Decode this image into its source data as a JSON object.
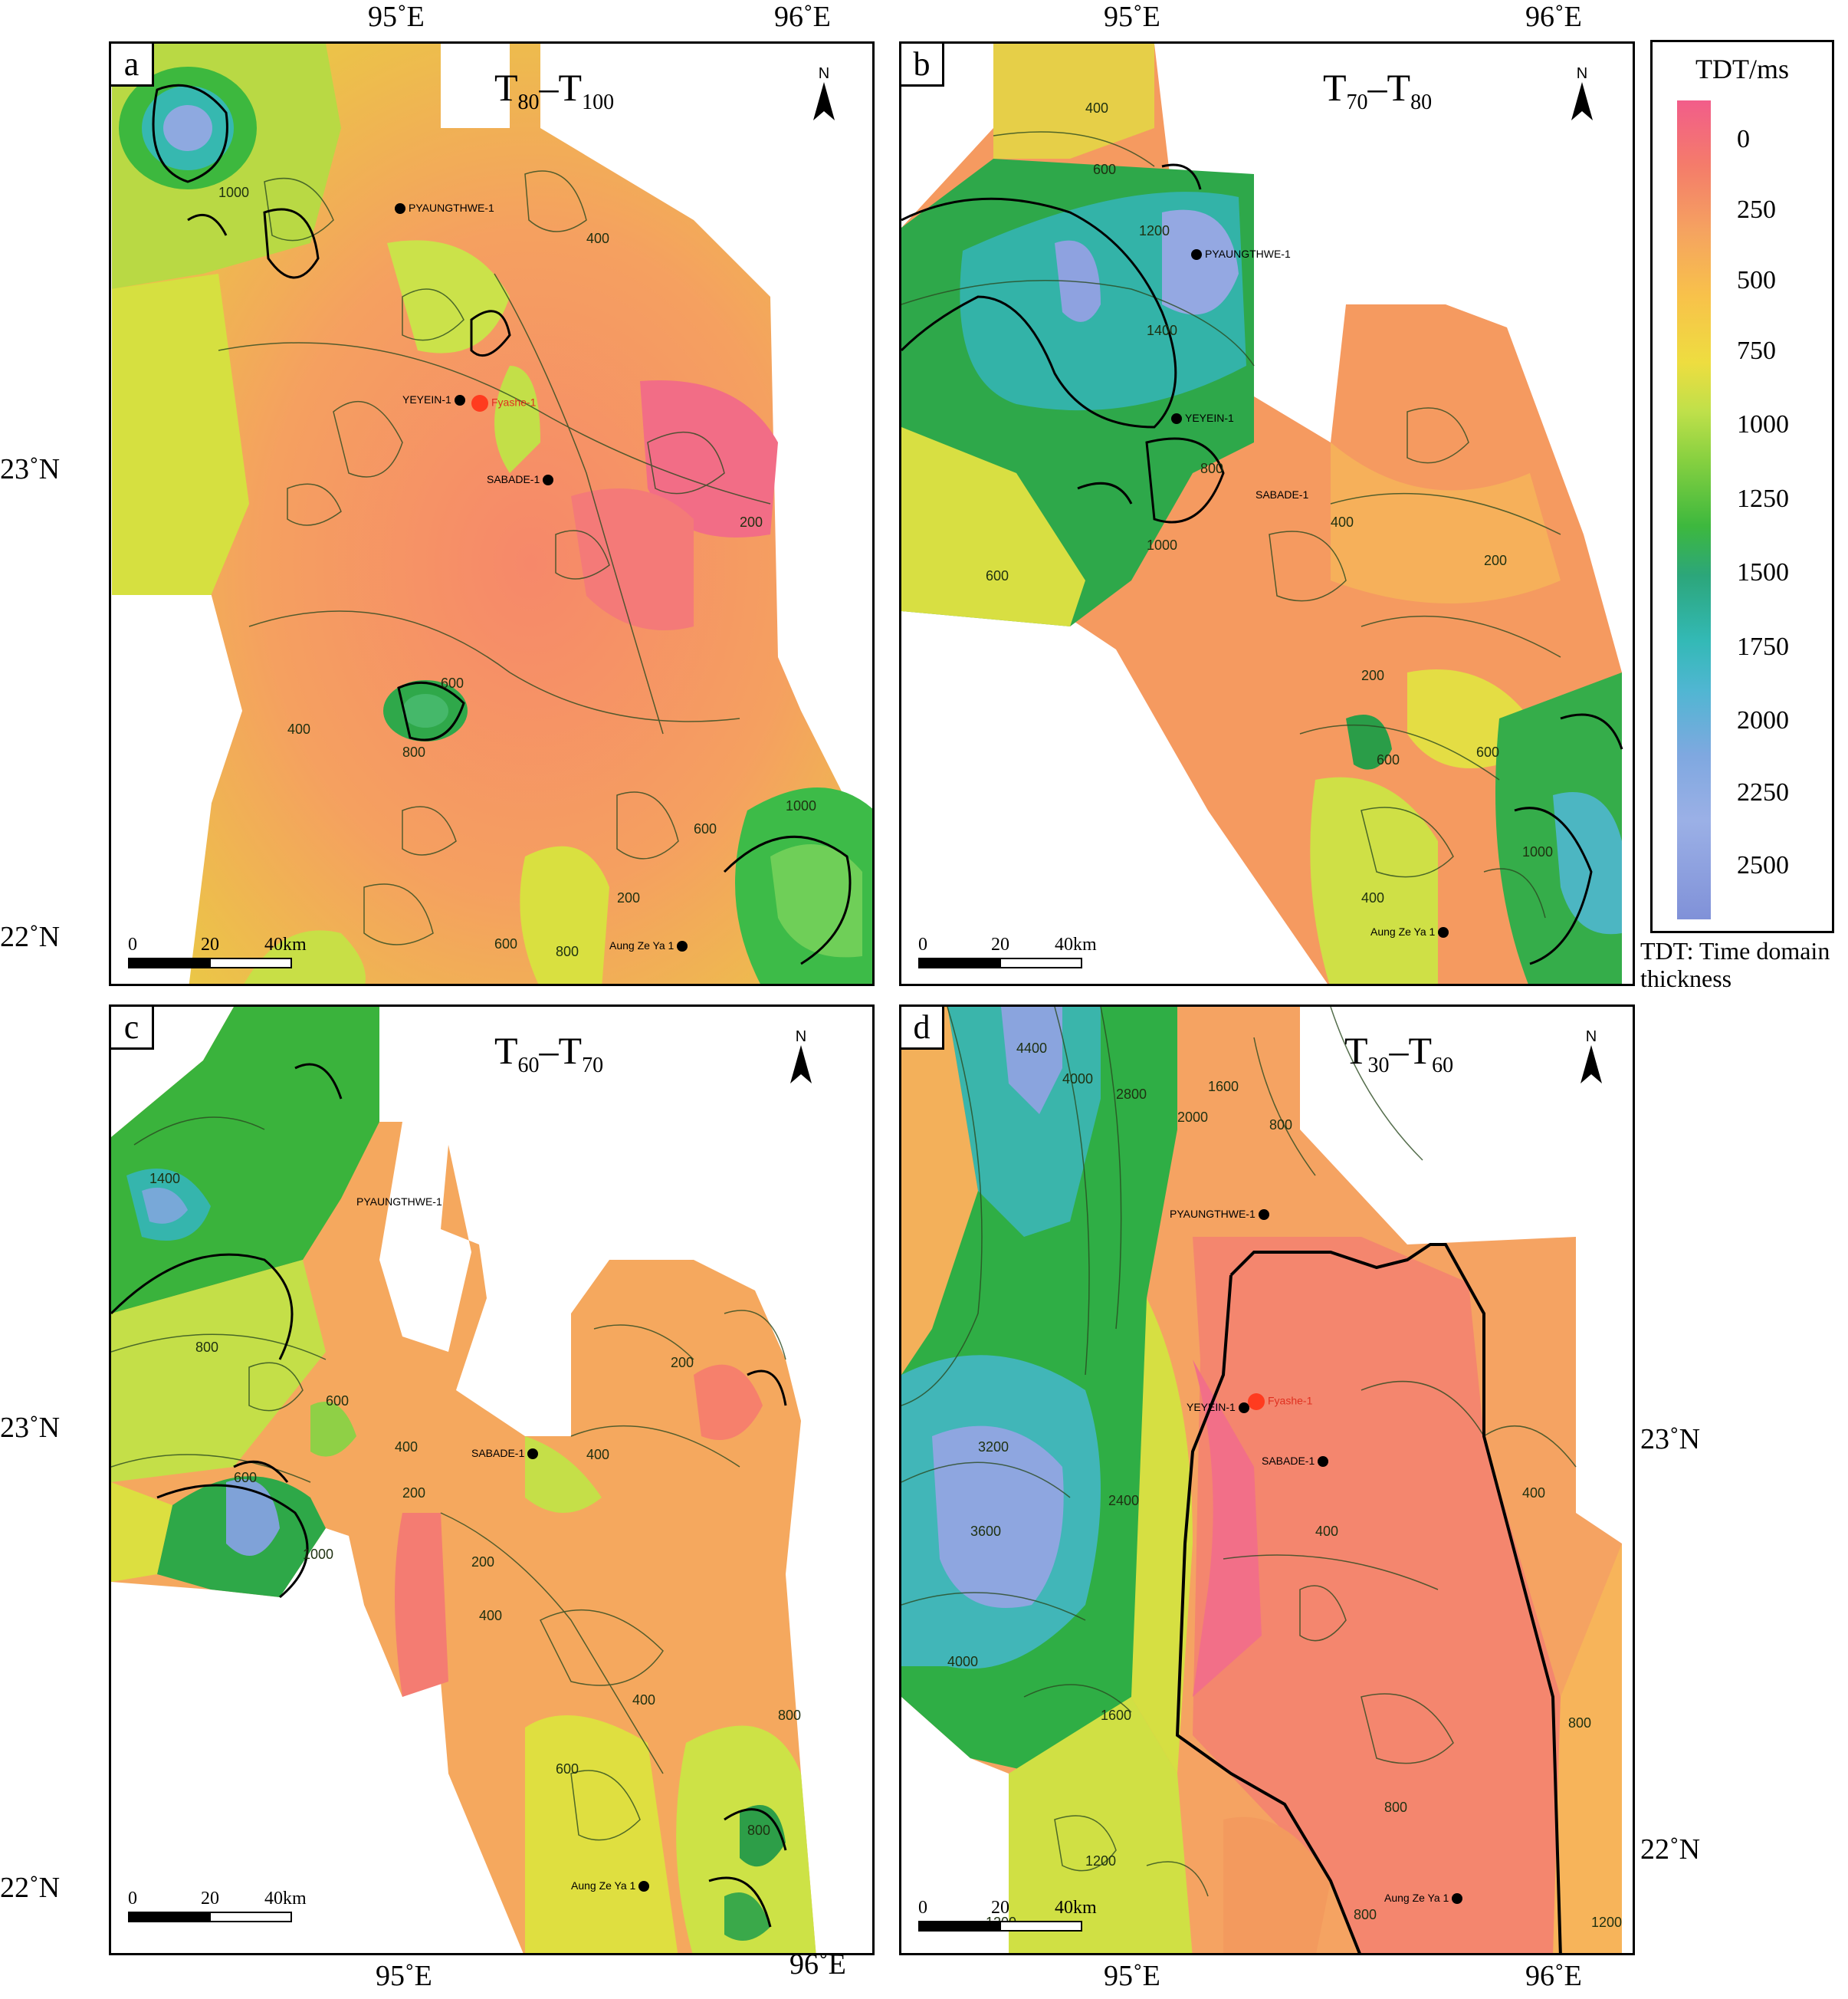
{
  "panels": [
    {
      "label": "a",
      "title_main": "T",
      "sub1": "80",
      "sep": "–T",
      "sub2": "100",
      "north": "N"
    },
    {
      "label": "b",
      "title_main": "T",
      "sub1": "70",
      "sep": "–T",
      "sub2": "80",
      "north": "N"
    },
    {
      "label": "c",
      "title_main": "T",
      "sub1": "60",
      "sep": "–T",
      "sub2": "70",
      "north": "N"
    },
    {
      "label": "d",
      "title_main": "T",
      "sub1": "30",
      "sep": "–T",
      "sub2": "60",
      "north": "N"
    }
  ],
  "coords": {
    "lon95": "95˚E",
    "lon96": "96˚E",
    "lat23": "23˚N",
    "lat22": "22˚N"
  },
  "scale": {
    "t0": "0",
    "t1": "20",
    "t2": "40km"
  },
  "wells": {
    "pyaungthwe": "PYAUNGTHWE-1",
    "yeyein": "YEYEIN-1",
    "sabade": "SABADE-1",
    "aungzeya": "Aung Ze Ya 1",
    "fyashe": "Fyashe-1"
  },
  "legend": {
    "title": "TDT/ms",
    "ticks": [
      "0",
      "250",
      "500",
      "750",
      "1000",
      "1250",
      "1500",
      "1750",
      "2000",
      "2250",
      "2500"
    ],
    "note": "TDT: Time domain thickness",
    "colors": [
      "#f25d8a",
      "#f5a360",
      "#eedd40",
      "#3db83e",
      "#33b9b6",
      "#8091d8"
    ]
  },
  "contour_labels": {
    "a": [
      "400",
      "200",
      "600",
      "800",
      "1000",
      "200",
      "400",
      "600",
      "800",
      "1000",
      "600"
    ],
    "b": [
      "400",
      "600",
      "1200",
      "1400",
      "800",
      "1000",
      "400",
      "200",
      "200",
      "600",
      "600",
      "1000",
      "400",
      "600"
    ],
    "c": [
      "1400",
      "800",
      "600",
      "400",
      "200",
      "1000",
      "200",
      "400",
      "600",
      "400",
      "800",
      "200",
      "400",
      "600",
      "800"
    ],
    "d": [
      "4400",
      "4000",
      "2800",
      "2000",
      "1600",
      "800",
      "3200",
      "3600",
      "2400",
      "4000",
      "1600",
      "400",
      "400",
      "800",
      "1200",
      "1200",
      "800",
      "800",
      "1200"
    ]
  }
}
